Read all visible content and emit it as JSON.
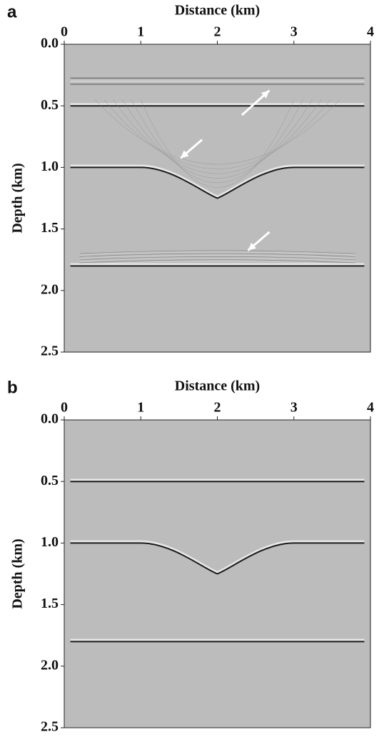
{
  "chart_data": [
    {
      "type": "image",
      "panel": "a",
      "xlabel": "Distance (km)",
      "ylabel": "Depth (km)",
      "xlim": [
        0,
        4
      ],
      "xticks": [
        0,
        1,
        2,
        3,
        4
      ],
      "ylim": [
        0,
        2.5
      ],
      "yticks": [
        {
          "value": 0,
          "label": "0.0"
        },
        0.5,
        {
          "value": 1,
          "label": "1.0"
        },
        1.5,
        {
          "value": 2,
          "label": "2.0"
        },
        2.5
      ],
      "noisy": true
    },
    {
      "type": "image",
      "panel": "b",
      "xlabel": "Distance (km)",
      "ylabel": "Depth (km)",
      "xlim": [
        0,
        4
      ],
      "xticks": [
        0,
        1,
        2,
        3,
        4
      ],
      "ylim": [
        0,
        2.5
      ],
      "yticks": [
        {
          "value": 0,
          "label": "0.0"
        },
        0.5,
        {
          "value": 1,
          "label": "1.0"
        },
        1.5,
        {
          "value": 2,
          "label": "2.0"
        },
        2.5
      ],
      "noisy": false
    }
  ]
}
